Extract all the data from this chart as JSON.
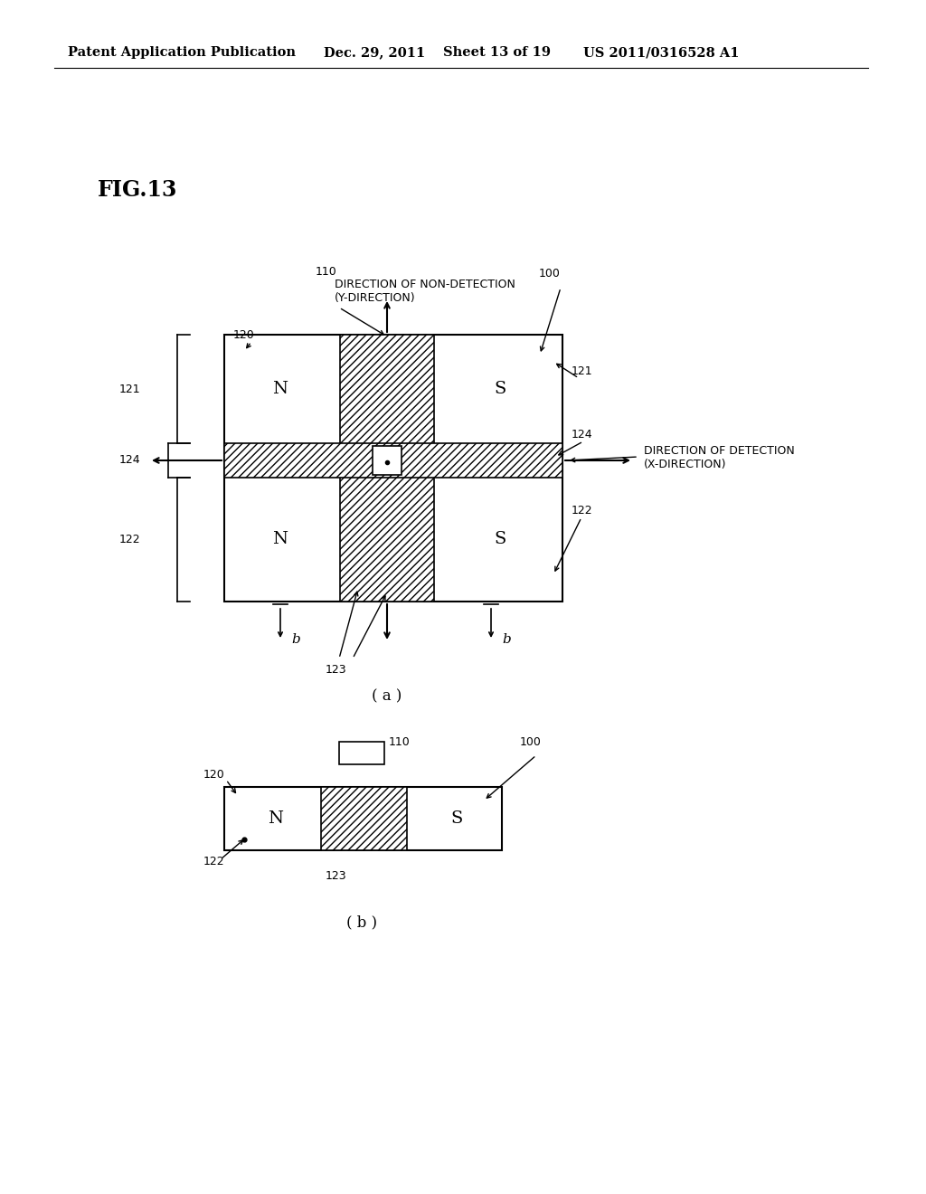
{
  "title_header": "Patent Application Publication",
  "date_header": "Dec. 29, 2011",
  "sheet_header": "Sheet 13 of 19",
  "patent_header": "US 2011/0316528 A1",
  "fig_label": "FIG.13",
  "bg_color": "#ffffff",
  "line_color": "#000000",
  "text_color": "#000000",
  "label_a": "( a )",
  "label_b": "( b )"
}
